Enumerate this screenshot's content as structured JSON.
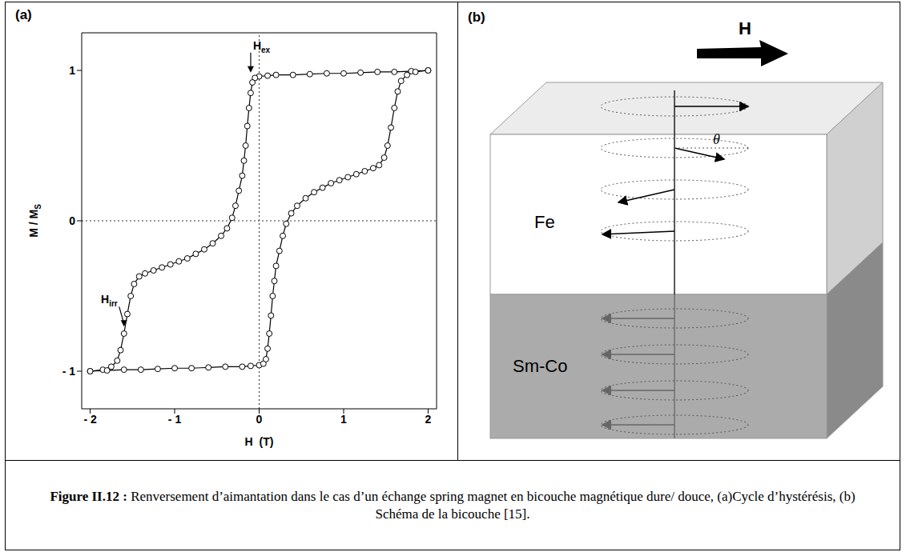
{
  "chart_data": {
    "type": "line",
    "title": "(a)",
    "x_label": "H  (T)",
    "y_label": {
      "text": "M / M",
      "subscript": "S"
    },
    "xlim": [
      -2.1,
      2.1
    ],
    "ylim": [
      -1.25,
      1.25
    ],
    "xticks": [
      {
        "value": -2,
        "label": "- 2"
      },
      {
        "value": -1,
        "label": "- 1"
      },
      0,
      1,
      2
    ],
    "yticks": [
      {
        "value": -1,
        "label": "- 1"
      },
      0,
      1
    ],
    "series": [
      {
        "color": "#000000",
        "marker": "circle",
        "x": [
          2.0,
          1.8,
          1.6,
          1.4,
          1.2,
          1.0,
          0.8,
          0.6,
          0.4,
          0.2,
          0.1,
          0.0,
          -0.05,
          -0.08,
          -0.1,
          -0.12,
          -0.14,
          -0.16,
          -0.18,
          -0.2,
          -0.24,
          -0.28,
          -0.32,
          -0.38,
          -0.45,
          -0.55,
          -0.65,
          -0.75,
          -0.85,
          -0.95,
          -1.05,
          -1.15,
          -1.25,
          -1.35,
          -1.42,
          -1.48,
          -1.52,
          -1.56,
          -1.6,
          -1.64,
          -1.68,
          -1.75,
          -1.85,
          -2.0
        ],
        "values": [
          1.0,
          0.995,
          0.99,
          0.99,
          0.985,
          0.98,
          0.98,
          0.975,
          0.97,
          0.97,
          0.965,
          0.96,
          0.95,
          0.92,
          0.85,
          0.75,
          0.63,
          0.5,
          0.4,
          0.3,
          0.2,
          0.1,
          0.02,
          -0.05,
          -0.1,
          -0.15,
          -0.19,
          -0.22,
          -0.25,
          -0.27,
          -0.29,
          -0.31,
          -0.33,
          -0.35,
          -0.37,
          -0.42,
          -0.5,
          -0.62,
          -0.75,
          -0.86,
          -0.93,
          -0.97,
          -0.99,
          -1.0
        ]
      },
      {
        "color": "#000000",
        "marker": "circle",
        "x": [
          -2.0,
          -1.8,
          -1.6,
          -1.4,
          -1.2,
          -1.0,
          -0.8,
          -0.6,
          -0.4,
          -0.2,
          -0.1,
          0.0,
          0.05,
          0.08,
          0.1,
          0.12,
          0.14,
          0.16,
          0.18,
          0.2,
          0.24,
          0.28,
          0.32,
          0.38,
          0.45,
          0.55,
          0.65,
          0.75,
          0.85,
          0.95,
          1.05,
          1.15,
          1.25,
          1.35,
          1.42,
          1.48,
          1.52,
          1.56,
          1.6,
          1.64,
          1.68,
          1.75,
          1.85,
          2.0
        ],
        "values": [
          -1.0,
          -0.995,
          -0.99,
          -0.99,
          -0.985,
          -0.98,
          -0.98,
          -0.975,
          -0.97,
          -0.97,
          -0.965,
          -0.96,
          -0.95,
          -0.92,
          -0.85,
          -0.75,
          -0.63,
          -0.5,
          -0.4,
          -0.3,
          -0.2,
          -0.1,
          -0.02,
          0.05,
          0.1,
          0.15,
          0.19,
          0.22,
          0.25,
          0.27,
          0.29,
          0.31,
          0.33,
          0.35,
          0.37,
          0.42,
          0.5,
          0.62,
          0.75,
          0.86,
          0.93,
          0.97,
          0.99,
          1.0
        ]
      }
    ],
    "annotations": [
      {
        "text": "H",
        "subscript": "ex",
        "x": -0.1,
        "y": 0.97
      },
      {
        "text": "H",
        "subscript": "irr",
        "x": -1.6,
        "y": -0.72
      }
    ]
  },
  "diagram": {
    "label": "(b)",
    "field": "H",
    "angle": "θ",
    "layers": [
      {
        "label": "Fe"
      },
      {
        "label": "Sm-Co"
      }
    ]
  },
  "caption": {
    "label": "Figure II.12 :",
    "text": "Renversement d’aimantation dans le cas d’un échange spring magnet en bicouche magnétique dure/ douce, (a)Cycle d’hystérésis, (b) Schéma de la bicouche [15]."
  }
}
